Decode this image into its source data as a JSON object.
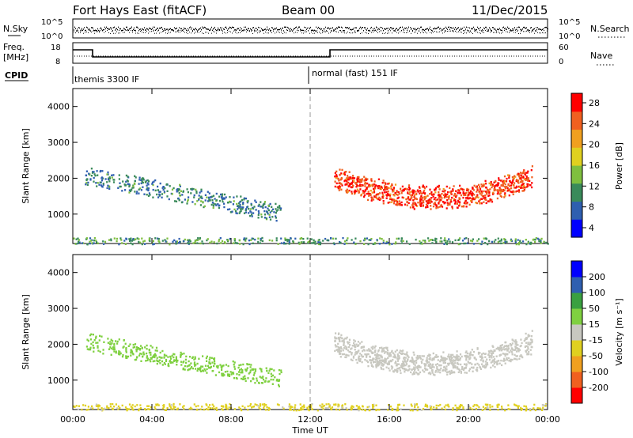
{
  "header": {
    "station": "Fort Hays East (fitACF)",
    "beam": "Beam 00",
    "date": "11/Dec/2015"
  },
  "strip1": {
    "left_label": "N.Sky",
    "right_label": "N.Search",
    "left_ticks": [
      "10^5",
      "10^0"
    ],
    "right_ticks": [
      "10^5",
      "10^0"
    ]
  },
  "strip2": {
    "left_label_line1": "Freq.",
    "left_label_line2": "[MHz]",
    "right_label": "Nave",
    "left_ticks": [
      "18",
      "8"
    ],
    "right_ticks": [
      "60",
      "0"
    ],
    "cpid_label": "CPID",
    "modes": [
      {
        "name": "themis 3300 IF",
        "start_hour": 0,
        "end_hour": 12
      },
      {
        "name": "normal (fast) 151 IF",
        "start_hour": 12,
        "end_hour": 24
      }
    ],
    "freq_steps": [
      {
        "start_hour": 0,
        "end_hour": 1,
        "level": "high"
      },
      {
        "start_hour": 1,
        "end_hour": 13,
        "level": "low"
      },
      {
        "start_hour": 13,
        "end_hour": 24,
        "level": "high"
      }
    ]
  },
  "chart_data": [
    {
      "type": "heatmap",
      "panel": "power",
      "ylabel": "Slant Range [km]",
      "yticks": [
        1000,
        2000,
        3000,
        4000
      ],
      "xticks": [
        "00:00",
        "04:00",
        "08:00",
        "12:00",
        "16:00",
        "20:00",
        "00:00"
      ],
      "xlim_hours": [
        0,
        24
      ],
      "ylim_km": [
        180,
        4500
      ],
      "colorbar": {
        "label": "Power [dB]",
        "ticks": [
          "28",
          "24",
          "20",
          "16",
          "12",
          "8",
          "4"
        ],
        "range": [
          0,
          30
        ],
        "colors": [
          "#0000ff",
          "#2f5fb0",
          "#3a8a5a",
          "#7fbf3f",
          "#e0d020",
          "#f0a020",
          "#f06020",
          "#ff0000"
        ]
      },
      "features": [
        {
          "name": "evening arc",
          "start_hour": 0.6,
          "end_hour": 10.5,
          "range_start_km": 2100,
          "range_end_km": 1050,
          "value_db": 8
        },
        {
          "name": "main band",
          "start_hour": 13.2,
          "end_hour": 23.2,
          "range_km": 1350,
          "value_db": 26
        },
        {
          "name": "near-range clutter",
          "start_hour": 0,
          "end_hour": 24,
          "range_km": 250,
          "value_db": 10
        }
      ]
    },
    {
      "type": "heatmap",
      "panel": "velocity",
      "ylabel": "Slant Range [km]",
      "yticks": [
        1000,
        2000,
        3000,
        4000
      ],
      "xticks": [
        "00:00",
        "04:00",
        "08:00",
        "12:00",
        "16:00",
        "20:00",
        "00:00"
      ],
      "xlabel": "Time UT",
      "xlim_hours": [
        0,
        24
      ],
      "ylim_km": [
        180,
        4500
      ],
      "colorbar": {
        "label": "Velocity [m s⁻¹]",
        "ticks": [
          "200",
          "100",
          "50",
          "15",
          "-15",
          "-50",
          "-100",
          "-200"
        ],
        "range": [
          -250,
          250
        ],
        "colors": [
          "#ff0000",
          "#f06020",
          "#f0a020",
          "#e0d020",
          "#c8c8c0",
          "#7fd040",
          "#3aa040",
          "#2f5fb0",
          "#0000ff"
        ]
      },
      "features": [
        {
          "name": "evening arc",
          "start_hour": 0.6,
          "end_hour": 10.5,
          "range_start_km": 2100,
          "range_end_km": 1050,
          "value_ms": 60
        },
        {
          "name": "main band",
          "start_hour": 13.2,
          "end_hour": 23.2,
          "range_km": 1350,
          "value_ms": 0
        },
        {
          "name": "near-range clutter",
          "start_hour": 0,
          "end_hour": 24,
          "range_km": 250,
          "value_ms": -40
        }
      ]
    }
  ]
}
